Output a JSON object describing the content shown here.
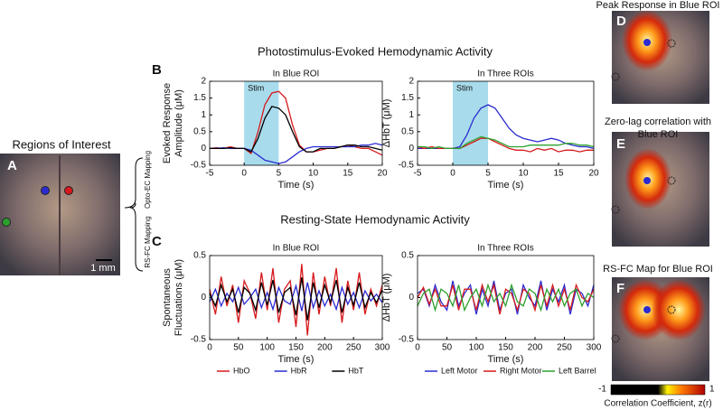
{
  "figure": {
    "section_titles": [
      "Photostimulus-Evoked Hemodynamic Activity",
      "Resting-State Hemodynamic Activity"
    ],
    "panel_labels": [
      "A",
      "B",
      "C",
      "D",
      "E",
      "F"
    ],
    "roi_title": "Regions of Interest",
    "scale_bar": "1 mm",
    "mapping_labels": [
      "Opto-EC Mapping",
      "RS-FC Mapping"
    ],
    "map_titles": [
      [
        "Peak Response in Blue ROI"
      ],
      [
        "Zero-lag correlation with",
        "Blue ROI"
      ],
      [
        "RS-FC Map for Blue ROI"
      ]
    ],
    "colorbar": {
      "ticks": [
        -1,
        1
      ],
      "label": "Correlation Coefficient, z(r)"
    }
  },
  "chart_data": [
    {
      "type": "line",
      "title": "In Blue ROI",
      "xlabel": "Time (s)",
      "ylabel": [
        "Evoked Response",
        "Amplitude (μM)"
      ],
      "x": [
        -5,
        -4,
        -3,
        -2,
        -1,
        0,
        1,
        2,
        3,
        4,
        5,
        6,
        7,
        8,
        9,
        10,
        11,
        12,
        13,
        14,
        15,
        16,
        17,
        18,
        19,
        20
      ],
      "xlim": [
        -5,
        20
      ],
      "xticks": [
        -5,
        0,
        5,
        10,
        15,
        20
      ],
      "ylim": [
        -0.5,
        2
      ],
      "yticks": [
        -0.5,
        0,
        0.5,
        1,
        1.5,
        2
      ],
      "shading": {
        "x": [
          0,
          5
        ],
        "label": "Stim",
        "color": "#a8dcec"
      },
      "series": [
        {
          "color": "#d7191c",
          "values": [
            0,
            0.02,
            0,
            0.05,
            0,
            0,
            -0.15,
            0.5,
            1.3,
            1.65,
            1.7,
            1.5,
            0.7,
            0.1,
            -0.1,
            -0.1,
            -0.05,
            0,
            0,
            0.05,
            0.1,
            0.05,
            0,
            0,
            -0.1,
            -0.2
          ]
        },
        {
          "color": "#2b2bd0",
          "values": [
            0,
            0,
            0.02,
            0,
            0,
            0,
            -0.05,
            -0.2,
            -0.35,
            -0.4,
            -0.45,
            -0.4,
            -0.25,
            -0.1,
            0,
            0.05,
            0.05,
            0.05,
            0.05,
            0.05,
            0.05,
            0.05,
            0.1,
            0.1,
            0.15,
            0.1
          ]
        },
        {
          "color": "#000000",
          "values": [
            0,
            0,
            0,
            0.02,
            0,
            0,
            -0.1,
            0.3,
            0.9,
            1.25,
            1.2,
            1.0,
            0.5,
            0.05,
            -0.1,
            -0.1,
            0,
            0,
            0,
            0.05,
            0.1,
            0.1,
            0.05,
            0.05,
            0,
            -0.05
          ]
        }
      ]
    },
    {
      "type": "line",
      "title": "In Three ROIs",
      "xlabel": "Time (s)",
      "ylabel": [
        "ΔHbT (μM)"
      ],
      "x": [
        -5,
        -4,
        -3,
        -2,
        -1,
        0,
        1,
        2,
        3,
        4,
        5,
        6,
        7,
        8,
        9,
        10,
        11,
        12,
        13,
        14,
        15,
        16,
        17,
        18,
        19,
        20
      ],
      "xlim": [
        -5,
        20
      ],
      "xticks": [
        -5,
        0,
        5,
        10,
        15,
        20
      ],
      "ylim": [
        -0.5,
        2
      ],
      "yticks": [
        -0.5,
        0,
        0.5,
        1,
        1.5,
        2
      ],
      "shading": {
        "x": [
          0,
          5
        ],
        "label": "Stim",
        "color": "#a8dcec"
      },
      "series": [
        {
          "color": "#2b2bd0",
          "values": [
            0,
            0,
            0,
            0,
            0,
            0,
            0.05,
            0.4,
            0.9,
            1.2,
            1.3,
            1.2,
            0.9,
            0.6,
            0.4,
            0.3,
            0.25,
            0.2,
            0.25,
            0.3,
            0.25,
            0.15,
            0.1,
            0.05,
            0.05,
            0
          ]
        },
        {
          "color": "#d7191c",
          "values": [
            0.05,
            0,
            0.05,
            0,
            0,
            0,
            0,
            0.1,
            0.2,
            0.3,
            0.3,
            0.2,
            0.1,
            0,
            -0.05,
            -0.05,
            -0.1,
            0,
            -0.05,
            0,
            -0.1,
            -0.05,
            -0.05,
            -0.1,
            -0.05,
            -0.05
          ]
        },
        {
          "color": "#2ca02c",
          "values": [
            0.05,
            0.05,
            0,
            0.05,
            0,
            0,
            0,
            0.15,
            0.25,
            0.35,
            0.3,
            0.25,
            0.15,
            0.05,
            0.05,
            0.05,
            0.1,
            0.1,
            0.1,
            0.1,
            0.1,
            0.15,
            0.15,
            0.1,
            0.1,
            0.05
          ]
        }
      ]
    },
    {
      "type": "line",
      "title": "In Blue ROI",
      "xlabel": "Time (s)",
      "ylabel": [
        "Spontaneous",
        "Fluctuations (μM)"
      ],
      "x": [
        0,
        10,
        20,
        30,
        40,
        50,
        60,
        70,
        80,
        90,
        100,
        110,
        120,
        130,
        140,
        150,
        160,
        170,
        180,
        190,
        200,
        210,
        220,
        230,
        240,
        250,
        260,
        270,
        280,
        290,
        300
      ],
      "xlim": [
        0,
        300
      ],
      "xticks": [
        0,
        50,
        100,
        150,
        200,
        250,
        300
      ],
      "ylim": [
        -0.5,
        0.5
      ],
      "yticks": [
        -0.5,
        0,
        0.5
      ],
      "legend": "bottom",
      "series": [
        {
          "name": "HbO",
          "color": "#d7191c",
          "values": [
            0.1,
            -0.2,
            0.25,
            -0.1,
            0.15,
            -0.3,
            0.2,
            0.05,
            -0.25,
            0.3,
            -0.15,
            0.35,
            -0.3,
            0.1,
            0.2,
            -0.35,
            0.4,
            -0.45,
            0.3,
            -0.2,
            0.25,
            -0.1,
            0.35,
            -0.3,
            0.2,
            -0.15,
            0.3,
            -0.2,
            0.1,
            -0.1,
            0.15
          ]
        },
        {
          "name": "HbR",
          "color": "#2b2bd0",
          "values": [
            -0.05,
            0.1,
            -0.1,
            0.05,
            -0.05,
            0.12,
            -0.08,
            0,
            0.1,
            -0.12,
            0.06,
            -0.14,
            0.12,
            -0.04,
            -0.08,
            0.14,
            -0.16,
            0.18,
            -0.12,
            0.08,
            -0.1,
            0.04,
            -0.14,
            0.12,
            -0.08,
            0.06,
            -0.12,
            0.08,
            -0.04,
            0.04,
            -0.06
          ]
        },
        {
          "name": "HbT",
          "color": "#000000",
          "values": [
            0.05,
            -0.1,
            0.15,
            -0.05,
            0.1,
            -0.18,
            0.12,
            0.05,
            -0.15,
            0.18,
            -0.09,
            0.21,
            -0.18,
            0.06,
            0.12,
            -0.21,
            0.24,
            -0.27,
            0.18,
            -0.12,
            0.15,
            -0.06,
            0.21,
            -0.18,
            0.12,
            -0.09,
            0.18,
            -0.12,
            0.06,
            -0.06,
            0.09
          ]
        }
      ]
    },
    {
      "type": "line",
      "title": "In Three ROIs",
      "xlabel": "Time (s)",
      "ylabel": [
        "ΔHbT (μM)"
      ],
      "x": [
        0,
        10,
        20,
        30,
        40,
        50,
        60,
        70,
        80,
        90,
        100,
        110,
        120,
        130,
        140,
        150,
        160,
        170,
        180,
        190,
        200,
        210,
        220,
        230,
        240,
        250,
        260,
        270,
        280,
        290,
        300
      ],
      "xlim": [
        0,
        300
      ],
      "xticks": [
        0,
        50,
        100,
        150,
        200,
        250,
        300
      ],
      "ylim": [
        -0.5,
        0.5
      ],
      "yticks": [
        -0.5,
        0,
        0.5
      ],
      "legend": "bottom",
      "series": [
        {
          "name": "Left Motor",
          "color": "#2b2bd0",
          "values": [
            0.05,
            0.1,
            -0.1,
            0.15,
            -0.05,
            -0.15,
            0.2,
            -0.1,
            0.05,
            0.15,
            -0.2,
            0.1,
            -0.1,
            0.2,
            -0.15,
            0.05,
            0.1,
            -0.2,
            0.15,
            0,
            -0.1,
            0.2,
            -0.15,
            0.1,
            -0.05,
            0.15,
            -0.2,
            0.1,
            0.05,
            -0.1,
            0.15
          ]
        },
        {
          "name": "Right Motor",
          "color": "#d7191c",
          "values": [
            0,
            0.12,
            -0.08,
            0.1,
            -0.1,
            -0.1,
            0.15,
            -0.15,
            0.1,
            0.1,
            -0.15,
            0.15,
            -0.05,
            0.15,
            -0.2,
            0.1,
            0.05,
            -0.15,
            0.1,
            0.05,
            -0.15,
            0.15,
            -0.1,
            0.15,
            -0.1,
            0.1,
            -0.15,
            0.15,
            0,
            -0.05,
            0.1
          ]
        },
        {
          "name": "Left Barrel",
          "color": "#2ca02c",
          "values": [
            -0.1,
            0.05,
            0.1,
            -0.15,
            0.1,
            0.05,
            -0.1,
            0.15,
            -0.15,
            0,
            0.1,
            -0.1,
            0.15,
            -0.05,
            0.05,
            -0.1,
            0.15,
            -0.05,
            -0.1,
            0.1,
            0.05,
            -0.15,
            0.1,
            -0.05,
            0.1,
            -0.1,
            0.05,
            0.1,
            -0.1,
            0.05,
            0
          ]
        }
      ]
    }
  ]
}
